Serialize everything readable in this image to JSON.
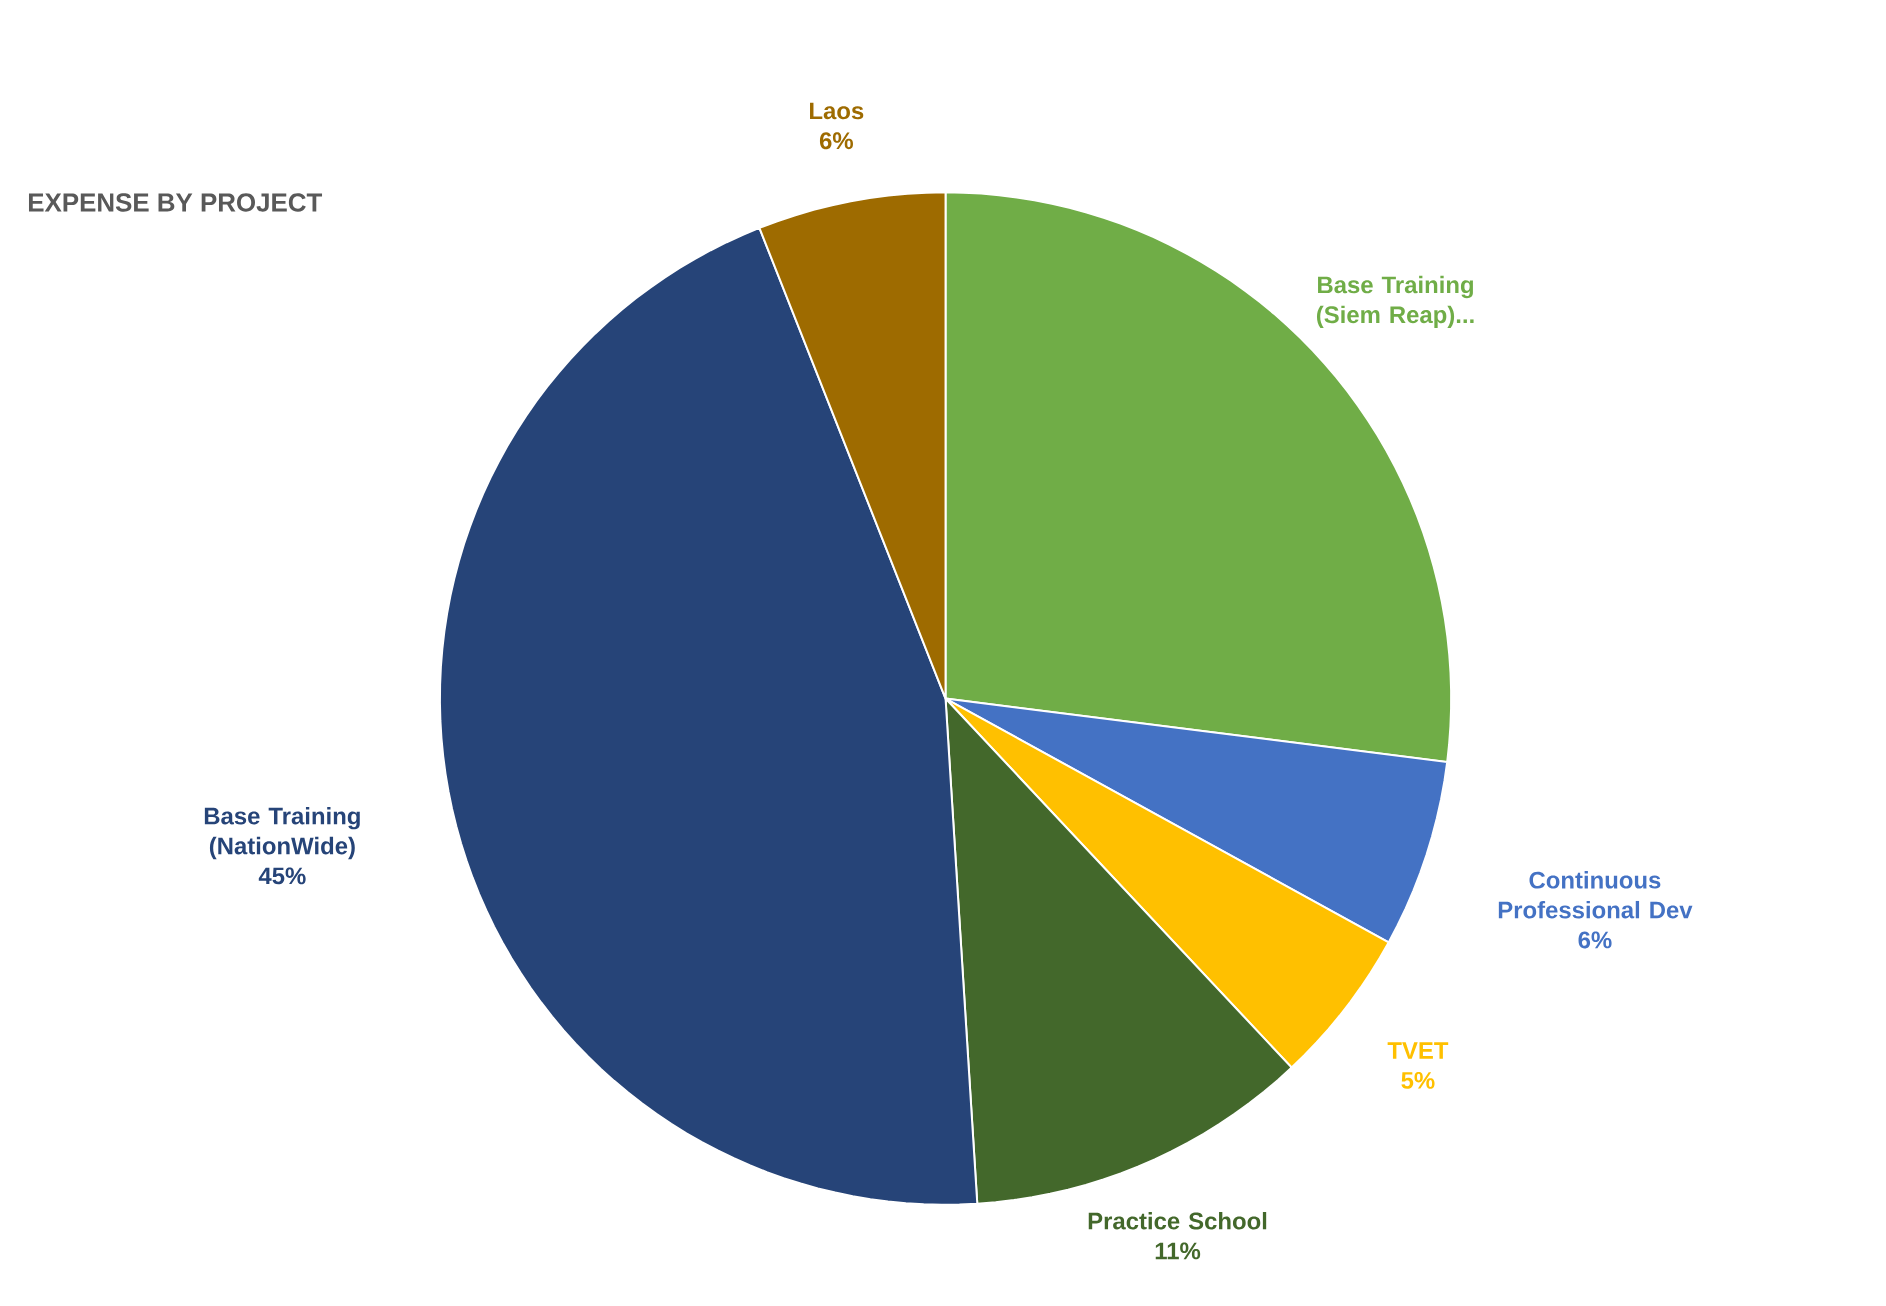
{
  "chart_data": {
    "type": "pie",
    "title": "EXPENSE BY PROJECT",
    "categories": [
      "Base Training (Siem Reap)...",
      "Continuous Professional Dev",
      "TVET",
      "Practice School",
      "Base Training (NationWide)",
      "Laos"
    ],
    "values": [
      27,
      6,
      5,
      11,
      45,
      6
    ],
    "value_labels": [
      null,
      "6%",
      "5%",
      "11%",
      "45%",
      "6%"
    ],
    "colors": [
      "#70ad47",
      "#4472c4",
      "#ffc000",
      "#43682b",
      "#264478",
      "#9e6b00"
    ]
  }
}
